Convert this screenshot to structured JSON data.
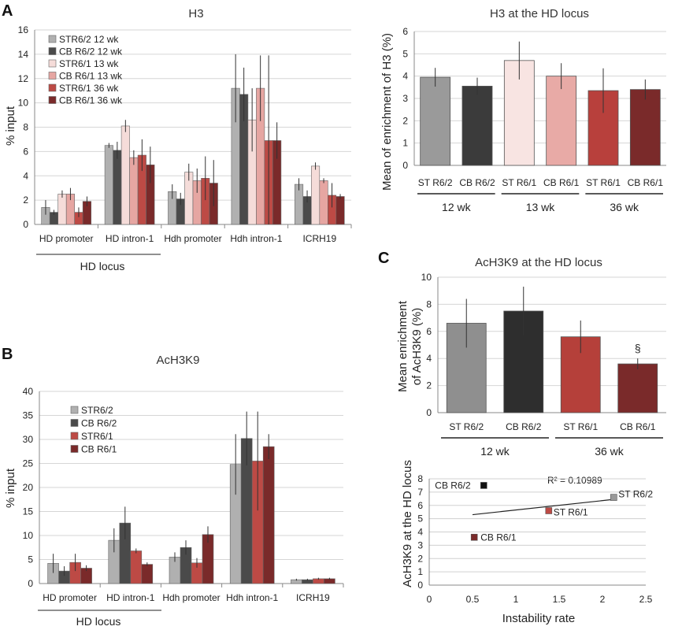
{
  "panel_labels": [
    "A",
    "B",
    "C"
  ],
  "colors": {
    "STR6/2": "#b0b0b0",
    "CBR6/2": "#4a4a4a",
    "STR6/1_13": "#f5dcd9",
    "CBR6/1_13": "#e6a6a2",
    "STR6/1_36": "#bd4a45",
    "CBR6/1_36": "#7a2a2a"
  },
  "chart_data": [
    {
      "id": "A-left",
      "type": "bar",
      "title": "H3",
      "ylabel": "% input",
      "ylim": [
        0,
        16
      ],
      "yticks": [
        0,
        2,
        4,
        6,
        8,
        10,
        12,
        14,
        16
      ],
      "categories": [
        "HD promoter",
        "HD intron-1",
        "Hdh promoter",
        "Hdh intron-1",
        "ICRH19"
      ],
      "group_label": "HD locus",
      "series": [
        {
          "name": "STR6/2 12 wk",
          "color": "#b0b0b0",
          "values": [
            1.4,
            6.5,
            2.7,
            11.2,
            3.3
          ],
          "errors": [
            0.6,
            0.2,
            0.6,
            2.8,
            0.5
          ]
        },
        {
          "name": "CB R6/2 12 wk",
          "color": "#4a4a4a",
          "values": [
            1.0,
            6.1,
            2.1,
            10.7,
            2.3
          ],
          "errors": [
            0.2,
            0.7,
            0.5,
            2.2,
            0.5
          ]
        },
        {
          "name": "STR6/1 13 wk",
          "color": "#f5dcd9",
          "values": [
            2.5,
            8.1,
            4.3,
            8.6,
            4.8
          ],
          "errors": [
            0.3,
            0.5,
            0.7,
            2.6,
            0.3
          ]
        },
        {
          "name": "CB R6/1 13 wk",
          "color": "#e6a6a2",
          "values": [
            2.5,
            5.5,
            3.6,
            11.2,
            3.6
          ],
          "errors": [
            0.5,
            0.6,
            1.0,
            2.7,
            0.2
          ]
        },
        {
          "name": "STR6/1 36 wk",
          "color": "#bd4a45",
          "values": [
            1.0,
            5.7,
            3.8,
            6.9,
            2.4
          ],
          "errors": [
            0.4,
            1.3,
            1.8,
            7.0,
            1.0
          ]
        },
        {
          "name": "CB R6/1 36 wk",
          "color": "#7a2a2a",
          "values": [
            1.9,
            4.9,
            3.4,
            6.9,
            2.3
          ],
          "errors": [
            0.4,
            1.5,
            1.9,
            1.5,
            0.2
          ]
        }
      ]
    },
    {
      "id": "A-right",
      "type": "bar",
      "title": "H3 at the HD locus",
      "ylabel": "Mean of enrichment of H3 (%)",
      "ylim": [
        0,
        6
      ],
      "yticks": [
        0,
        1,
        2,
        3,
        4,
        5,
        6
      ],
      "categories": [
        "ST R6/2",
        "CB R6/2",
        "ST R6/1",
        "CB R6/1",
        "ST R6/1",
        "CB R6/1"
      ],
      "groups": [
        {
          "label": "12 wk",
          "from": 0,
          "to": 1
        },
        {
          "label": "13 wk",
          "from": 2,
          "to": 3
        },
        {
          "label": "36 wk",
          "from": 4,
          "to": 5
        }
      ],
      "values": [
        3.95,
        3.55,
        4.7,
        4.0,
        3.35,
        3.4
      ],
      "errors": [
        0.42,
        0.38,
        0.85,
        0.58,
        1.0,
        0.45
      ],
      "colors": [
        "#9a9a9a",
        "#3b3b3b",
        "#f8e4e2",
        "#e8aaa6",
        "#b8403c",
        "#7a2a2a"
      ]
    },
    {
      "id": "B",
      "type": "bar",
      "title": "AcH3K9",
      "ylabel": "% input",
      "ylim": [
        0,
        40
      ],
      "yticks": [
        0,
        5,
        10,
        15,
        20,
        25,
        30,
        35,
        40
      ],
      "categories": [
        "HD promoter",
        "HD intron-1",
        "Hdh promoter",
        "Hdh intron-1",
        "ICRH19"
      ],
      "group_label": "HD locus",
      "series": [
        {
          "name": "STR6/2",
          "color": "#b0b0b0",
          "values": [
            4.2,
            9.0,
            5.5,
            24.8,
            0.8
          ],
          "errors": [
            2.0,
            2.5,
            1.0,
            6.3,
            0.2
          ]
        },
        {
          "name": "CB R6/2",
          "color": "#4a4a4a",
          "values": [
            2.6,
            12.6,
            7.5,
            30.2,
            0.8
          ],
          "errors": [
            1.0,
            3.4,
            1.5,
            5.6,
            0.2
          ]
        },
        {
          "name": "STR6/1",
          "color": "#bd4a45",
          "values": [
            4.4,
            6.8,
            4.3,
            25.5,
            1.0
          ],
          "errors": [
            1.8,
            0.5,
            1.0,
            10.3,
            0.2
          ]
        },
        {
          "name": "CB R6/1",
          "color": "#7a2a2a",
          "values": [
            3.2,
            4.0,
            10.2,
            28.5,
            1.0
          ],
          "errors": [
            0.6,
            0.4,
            1.7,
            2.6,
            0.2
          ]
        }
      ]
    },
    {
      "id": "C-top",
      "type": "bar",
      "title": "AcH3K9 at the HD locus",
      "ylabel": "Mean enrichment of AcH3K9 (%)",
      "ylim": [
        0,
        10
      ],
      "yticks": [
        0,
        2,
        4,
        6,
        8,
        10
      ],
      "categories": [
        "ST  R6/2",
        "CB R6/2",
        "ST  R6/1",
        "CB R6/1"
      ],
      "groups": [
        {
          "label": "12 wk",
          "from": 0,
          "to": 1
        },
        {
          "label": "36 wk",
          "from": 2,
          "to": 3
        }
      ],
      "values": [
        6.6,
        7.5,
        5.6,
        3.6
      ],
      "errors": [
        1.8,
        1.8,
        1.2,
        0.4
      ],
      "colors": [
        "#8f8f8f",
        "#2e2e2e",
        "#b5403a",
        "#7a2a2a"
      ],
      "annotation": {
        "text": "§",
        "index": 3
      }
    },
    {
      "id": "C-bottom",
      "type": "scatter",
      "ylabel": "AcH3K9 at the HD locus",
      "xlabel": "Instability rate",
      "xlim": [
        0,
        2.5
      ],
      "ylim": [
        0,
        8
      ],
      "xticks": [
        "0",
        "0.5",
        "1",
        "1.5",
        "2",
        "2.5"
      ],
      "yticks": [
        0,
        1,
        2,
        3,
        4,
        5,
        6,
        7,
        8
      ],
      "points": [
        {
          "label": "CB R6/2",
          "x": 0.63,
          "y": 7.5,
          "color": "#111111",
          "label_color": "#333333"
        },
        {
          "label": "ST R6/2",
          "x": 2.13,
          "y": 6.6,
          "color": "#999999",
          "label_color": "#333333"
        },
        {
          "label": "ST R6/1",
          "x": 1.38,
          "y": 5.6,
          "color": "#bd4a45",
          "label_color": "#bd4a45"
        },
        {
          "label": "CB R6/1",
          "x": 0.52,
          "y": 3.6,
          "color": "#7a2a2a",
          "label_color": "#9a2e2e"
        }
      ],
      "trendline": {
        "x": [
          0.5,
          2.13
        ],
        "y": [
          5.3,
          6.45
        ]
      },
      "r2_label": "R² = 0.10989"
    }
  ]
}
